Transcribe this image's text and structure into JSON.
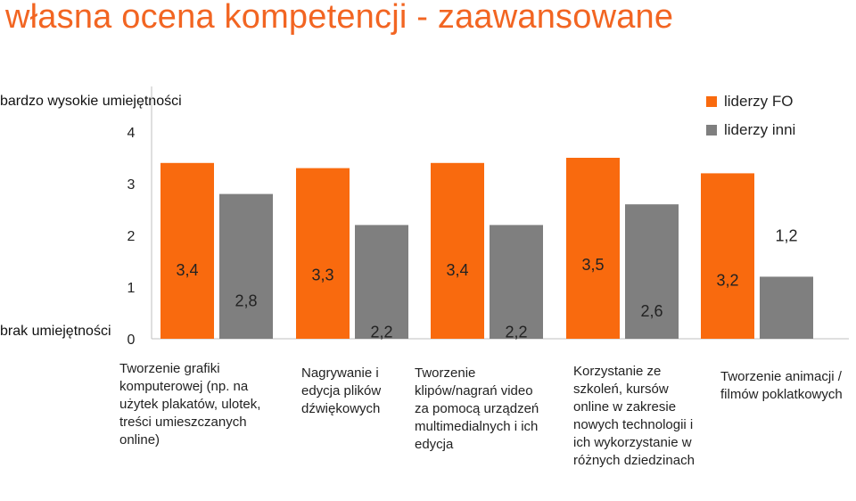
{
  "title": "własna ocena kompetencji - zaawansowane",
  "scale_labels": {
    "top": "bardzo wysokie umiejętności",
    "bottom": "brak umiejętności"
  },
  "colors": {
    "orange": "#f96a0e",
    "gray": "#7f7f7f"
  },
  "chart_data": {
    "type": "bar",
    "categories": [
      "Tworzenie grafiki komputerowej (np. na użytek plakatów, ulotek, treści umieszczanych online)",
      "Nagrywanie i edycja plików dźwiękowych",
      "Tworzenie klipów/nagrań video za pomocą urządzeń multimedialnych i ich edycja",
      "Korzystanie ze szkoleń, kursów online w zakresie nowych technologii i ich wykorzystanie w różnych dziedzinach",
      "Tworzenie animacji / filmów poklatkowych"
    ],
    "series": [
      {
        "name": "liderzy FO",
        "values": [
          3.4,
          3.3,
          3.4,
          3.5,
          3.2
        ],
        "labels": [
          "3,4",
          "3,3",
          "3,4",
          "3,5",
          "3,2"
        ]
      },
      {
        "name": "liderzy inni",
        "values": [
          2.8,
          2.2,
          2.2,
          2.6,
          1.2
        ],
        "labels": [
          "2,8",
          "2,2",
          "2,2",
          "2,6",
          "1,2"
        ]
      }
    ],
    "yticks": [
      "0",
      "1",
      "2",
      "3",
      "4"
    ],
    "ylim": [
      0,
      4
    ],
    "legend": "top-right",
    "grid": false
  }
}
